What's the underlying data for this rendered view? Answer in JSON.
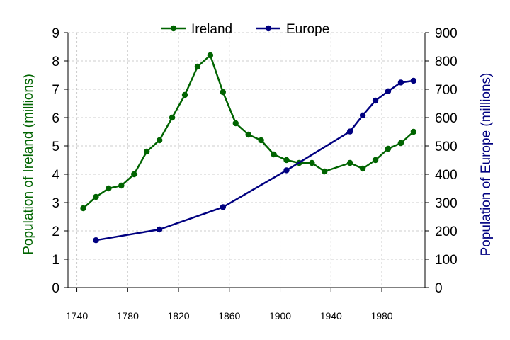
{
  "chart_data": {
    "type": "line",
    "xlabel": "",
    "x_ticks": [
      "1740",
      "1780",
      "1820",
      "1860",
      "1900",
      "1940",
      "1980"
    ],
    "xlim": [
      1733,
      2014
    ],
    "y_left": {
      "label": "Population of Ireland (millions)",
      "ticks": [
        "0",
        "1",
        "2",
        "3",
        "4",
        "5",
        "6",
        "7",
        "8",
        "9"
      ],
      "lim": [
        0,
        9
      ],
      "color": "#006400"
    },
    "y_right": {
      "label": "Population of Europe (millions)",
      "ticks": [
        "0",
        "100",
        "200",
        "300",
        "400",
        "500",
        "600",
        "700",
        "800",
        "900"
      ],
      "lim": [
        0,
        900
      ],
      "color": "#000080"
    },
    "grid": true,
    "legend_position": "top-center",
    "series": [
      {
        "name": "Ireland",
        "axis": "left",
        "color": "#006400",
        "x": [
          1745,
          1755,
          1765,
          1775,
          1785,
          1795,
          1805,
          1815,
          1825,
          1835,
          1845,
          1855,
          1865,
          1875,
          1885,
          1895,
          1905,
          1915,
          1925,
          1935,
          1955,
          1965,
          1975,
          1985,
          1995,
          2005
        ],
        "values": [
          2.8,
          3.2,
          3.5,
          3.6,
          4.0,
          4.8,
          5.2,
          6.0,
          6.8,
          7.8,
          8.2,
          6.9,
          5.8,
          5.4,
          5.2,
          4.7,
          4.5,
          4.4,
          4.4,
          4.1,
          4.4,
          4.2,
          4.5,
          4.9,
          5.1,
          5.5
        ]
      },
      {
        "name": "Europe",
        "axis": "right",
        "color": "#000080",
        "x": [
          1755,
          1805,
          1855,
          1905,
          1955,
          1965,
          1975,
          1985,
          1995,
          2005
        ],
        "values": [
          167,
          205,
          284,
          414,
          551,
          608,
          660,
          693,
          724,
          730
        ]
      }
    ]
  }
}
